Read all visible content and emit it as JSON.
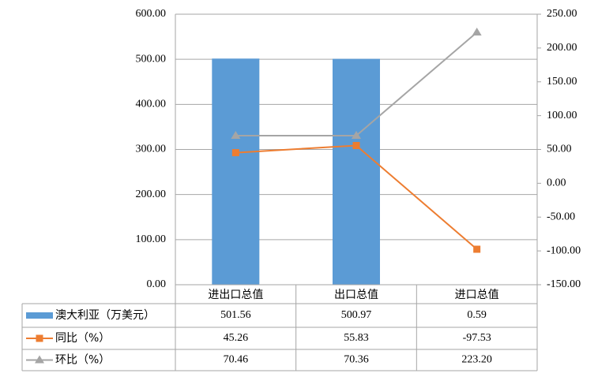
{
  "chart_data": {
    "type": "bar",
    "categories": [
      "进出口总值",
      "出口总值",
      "进口总值"
    ],
    "series": [
      {
        "name": "澳大利亚（万美元）",
        "type": "bar",
        "color": "#5b9bd5",
        "values": [
          501.56,
          500.97,
          0.59
        ],
        "value_labels": [
          "501.56",
          "500.97",
          "0.59"
        ]
      },
      {
        "name": "同比（%）",
        "type": "line",
        "marker": "square",
        "axis": "y2",
        "color": "#ed7d31",
        "values": [
          45.26,
          55.83,
          -97.53
        ],
        "value_labels": [
          "45.26",
          "55.83",
          "-97.53"
        ]
      },
      {
        "name": "环比（%）",
        "type": "line",
        "marker": "triangle",
        "axis": "y2",
        "color": "#a5a5a5",
        "values": [
          70.46,
          70.36,
          223.2
        ],
        "value_labels": [
          "70.46",
          "70.36",
          "223.20"
        ]
      }
    ],
    "ylim": [
      0,
      600
    ],
    "yticks": [
      {
        "value": 0,
        "label": "0.00"
      },
      {
        "value": 100,
        "label": "100.00"
      },
      {
        "value": 200,
        "label": "200.00"
      },
      {
        "value": 300,
        "label": "300.00"
      },
      {
        "value": 400,
        "label": "400.00"
      },
      {
        "value": 500,
        "label": "500.00"
      },
      {
        "value": 600,
        "label": "600.00"
      }
    ],
    "y2lim": [
      -150,
      250
    ],
    "y2ticks": [
      {
        "value": -150,
        "label": "-150.00"
      },
      {
        "value": -100,
        "label": "-100.00"
      },
      {
        "value": -50,
        "label": "-50.00"
      },
      {
        "value": 0,
        "label": "0.00"
      },
      {
        "value": 50,
        "label": "50.00"
      },
      {
        "value": 100,
        "label": "100.00"
      },
      {
        "value": 150,
        "label": "150.00"
      },
      {
        "value": 200,
        "label": "200.00"
      },
      {
        "value": 250,
        "label": "250.00"
      }
    ],
    "grid": true,
    "data_table": true
  }
}
